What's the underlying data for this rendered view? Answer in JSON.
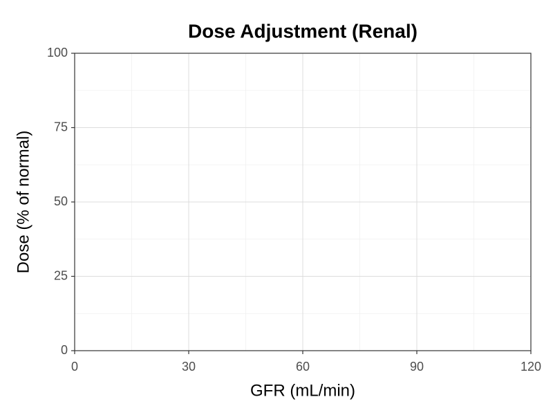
{
  "chart_data": {
    "type": "line",
    "title": "Dose Adjustment (Renal)",
    "x_label": "GFR (mL/min)",
    "y_label": "Dose (% of normal)",
    "xlim": [
      0,
      120
    ],
    "xticks": [
      0,
      30,
      60,
      90,
      120
    ],
    "ylim": [
      0,
      100
    ],
    "yticks": [
      0,
      25,
      50,
      75,
      100
    ],
    "grid": true
  }
}
